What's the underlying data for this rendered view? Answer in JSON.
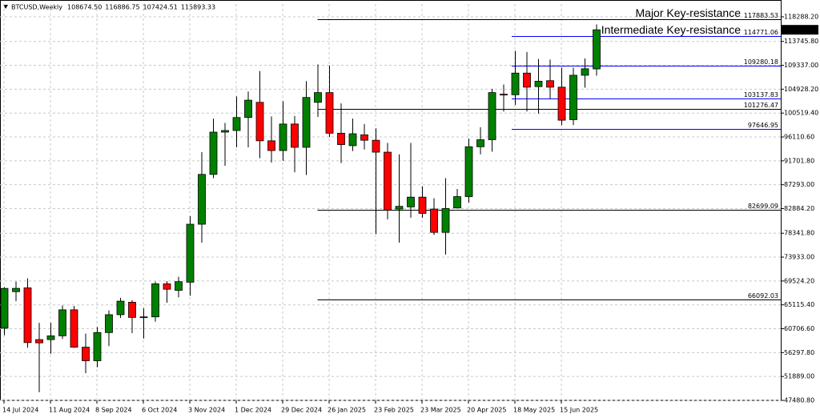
{
  "chart_data": {
    "type": "candlestick",
    "title": "BTCUSD,Weekly",
    "last_bar_labels": [
      "108674.50",
      "116886.75",
      "107424.51",
      "115893.33"
    ],
    "categories": [
      "14 Jul 2024",
      null,
      null,
      null,
      "11 Aug 2024",
      null,
      null,
      null,
      "8 Sep 2024",
      null,
      null,
      null,
      "6 Oct 2024",
      null,
      null,
      null,
      "3 Nov 2024",
      null,
      null,
      null,
      "1 Dec 2024",
      null,
      null,
      null,
      "29 Dec 2024",
      null,
      null,
      null,
      "26 Jan 2025",
      null,
      null,
      null,
      "23 Feb 2025",
      null,
      null,
      null,
      "23 Mar 2025",
      null,
      null,
      null,
      "20 Apr 2025",
      null,
      null,
      null,
      "18 May 2025",
      null,
      null,
      null,
      "15 Jun 2025",
      null,
      null,
      null
    ],
    "open": [
      60800,
      67550,
      68250,
      58700,
      58700,
      59400,
      64200,
      57300,
      54800,
      60000,
      63300,
      65600,
      62800,
      62900,
      69000,
      67800,
      69300,
      80000,
      89200,
      97000,
      97300,
      99700,
      102500,
      95400,
      93600,
      98500,
      94200,
      102500,
      104300,
      96800,
      94500,
      96500,
      95500,
      93300,
      82800,
      83200,
      85000,
      82800,
      78500,
      83000,
      85100,
      94300,
      95600,
      104000,
      103900,
      107900,
      105400,
      106500,
      105300,
      99300,
      107500,
      108674.5
    ],
    "high": [
      68400,
      69400,
      70000,
      61800,
      61800,
      65000,
      64900,
      59800,
      61000,
      64100,
      66400,
      66000,
      64500,
      69400,
      69500,
      70300,
      81500,
      93300,
      99500,
      98700,
      103600,
      104500,
      108300,
      99900,
      102700,
      100000,
      106400,
      109500,
      109300,
      102300,
      99500,
      98500,
      97700,
      95000,
      92900,
      95000,
      87000,
      84800,
      88500,
      86500,
      95800,
      97900,
      105000,
      105800,
      112000,
      111800,
      110500,
      110400,
      108900,
      108900,
      110600,
      116886.75
    ],
    "low": [
      59500,
      65800,
      57200,
      49000,
      56100,
      58800,
      57200,
      52500,
      53600,
      57500,
      62700,
      59900,
      58900,
      62000,
      65500,
      66500,
      66800,
      76600,
      88500,
      90800,
      94200,
      94200,
      92200,
      91400,
      91700,
      89600,
      89100,
      99800,
      96100,
      91300,
      93500,
      93800,
      78200,
      80900,
      76600,
      81200,
      81200,
      78000,
      74400,
      83000,
      84000,
      92900,
      93400,
      100800,
      102000,
      100800,
      100400,
      103200,
      98300,
      98300,
      105200,
      107424.51
    ],
    "close": [
      68150,
      68160,
      58150,
      58100,
      59400,
      64200,
      57300,
      54800,
      60000,
      63300,
      65800,
      62800,
      62900,
      69000,
      68000,
      69400,
      80000,
      89200,
      97000,
      97300,
      99700,
      102900,
      95400,
      93600,
      98500,
      94200,
      103400,
      104300,
      96800,
      94700,
      96700,
      95500,
      93300,
      82600,
      83300,
      85000,
      82000,
      78500,
      82900,
      85100,
      94300,
      95600,
      104300,
      103900,
      107900,
      105300,
      106400,
      105300,
      99200,
      107500,
      108700,
      115893.33
    ],
    "up_color": "#008000",
    "down_color": "#ff0000",
    "ylim": [
      47480.8,
      120653
    ],
    "yticks": [
      {
        "value": 118288.2,
        "label": "118288.20"
      },
      {
        "value": 113745.8,
        "label": "113745.80"
      },
      {
        "value": 109337,
        "label": "109337.00"
      },
      {
        "value": 104928.2,
        "label": "104928.20"
      },
      {
        "value": 100519.4,
        "label": "100519.40"
      },
      {
        "value": 96110.6,
        "label": "96110.60"
      },
      {
        "value": 91701.8,
        "label": "91701.80"
      },
      {
        "value": 87293,
        "label": "87293.00"
      },
      {
        "value": 82884.2,
        "label": "82884.20"
      },
      {
        "value": 78341.8,
        "label": "78341.80"
      },
      {
        "value": 73933,
        "label": "73933.00"
      },
      {
        "value": 69524.2,
        "label": "69524.20"
      },
      {
        "value": 65115.4,
        "label": "65115.40"
      },
      {
        "value": 60706.6,
        "label": "60706.60"
      },
      {
        "value": 56297.8,
        "label": "56297.80"
      },
      {
        "value": 51889,
        "label": "51889.00"
      },
      {
        "value": 47480.8,
        "label": "47480.80"
      }
    ],
    "grid": true,
    "levels": [
      {
        "value": 117883.53,
        "color": "#000000",
        "name": "Major Key-resistance"
      },
      {
        "value": 114771.06,
        "color": "#0000ff",
        "name": "Intermediate Key-resistance"
      },
      {
        "value": 109280.18,
        "color": "#0000ff"
      },
      {
        "value": 103137.83,
        "color": "#0000ff"
      },
      {
        "value": 101276.47,
        "color": "#000000"
      },
      {
        "value": 97646.95,
        "color": "#0000ff"
      },
      {
        "value": 82699.09,
        "color": "#000000"
      },
      {
        "value": 66092.03,
        "color": "#000000"
      }
    ]
  }
}
